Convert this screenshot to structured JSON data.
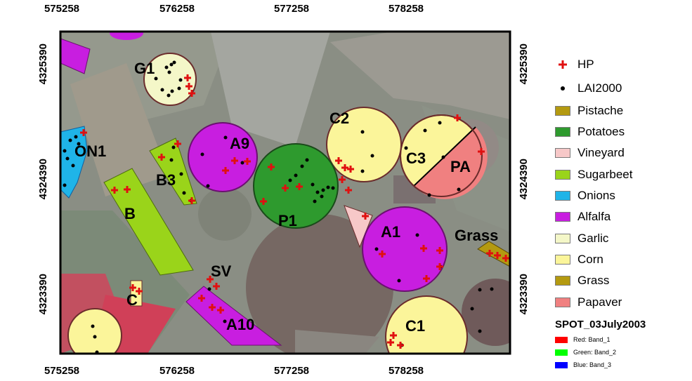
{
  "axes": {
    "x_ticks": [
      "575258",
      "576258",
      "577258",
      "578258"
    ],
    "y_ticks": [
      "4325390",
      "4324390",
      "4323390"
    ]
  },
  "fields": {
    "G1": "G1",
    "ON1": "ON1",
    "B3": "B3",
    "B": "B",
    "A9": "A9",
    "C2": "C2",
    "C3": "C3",
    "PA": "PA",
    "P1": "P1",
    "A1": "A1",
    "Grass": "Grass",
    "SV": "SV",
    "C": "C",
    "A10": "A10",
    "C1": "C1"
  },
  "legend": {
    "points": [
      {
        "label": "HP",
        "symbol": "red-cross",
        "color": "#e01010"
      },
      {
        "label": "LAI2000",
        "symbol": "black-dot",
        "color": "#000000"
      }
    ],
    "classes": [
      {
        "label": "Pistache",
        "color": "#b49a10"
      },
      {
        "label": "Potatoes",
        "color": "#2e9a2e"
      },
      {
        "label": "Vineyard",
        "color": "#f7c8c8"
      },
      {
        "label": "Sugarbeet",
        "color": "#9ad41a"
      },
      {
        "label": "Onions",
        "color": "#1fb4e8"
      },
      {
        "label": "Alfalfa",
        "color": "#c81ee0"
      },
      {
        "label": "Garlic",
        "color": "#f4f7c8"
      },
      {
        "label": "Corn",
        "color": "#fbf59a"
      },
      {
        "label": "Grass",
        "color": "#b49a10"
      },
      {
        "label": "Papaver",
        "color": "#f08080"
      }
    ],
    "image_title": "SPOT_03July2003",
    "bands": [
      {
        "label": "Red:   Band_1",
        "color": "#ff0000"
      },
      {
        "label": "Green: Band_2",
        "color": "#00ff00"
      },
      {
        "label": "Blue:   Band_3",
        "color": "#0000ff"
      }
    ]
  }
}
